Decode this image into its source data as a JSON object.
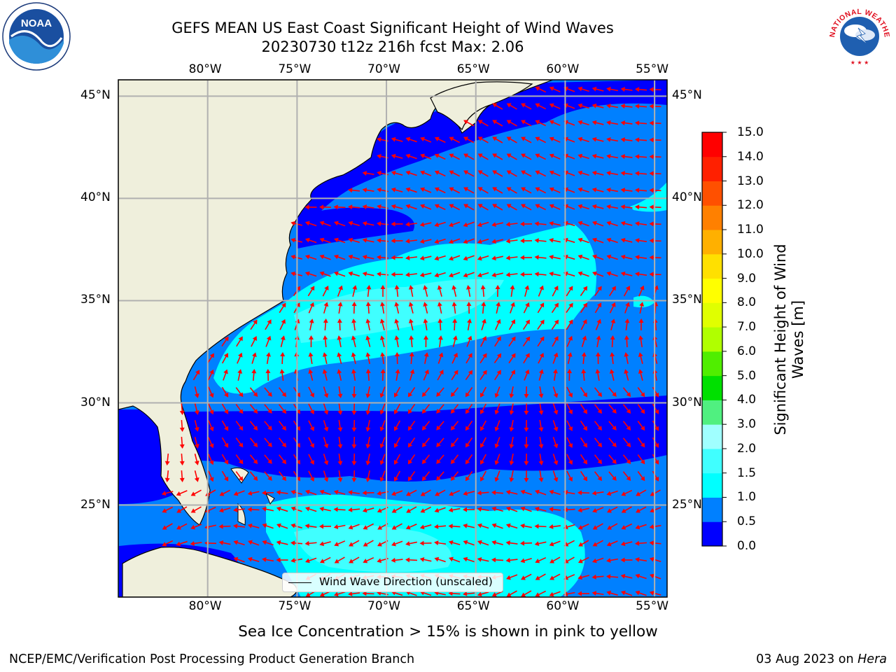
{
  "title": {
    "line1": "GEFS MEAN US East Coast Significant Height of Wind Waves",
    "line2": "20230730 t12z 216h fcst   Max: 2.06"
  },
  "map": {
    "extent": {
      "lon_min": -85,
      "lon_max": -54.3,
      "lat_min": 20.5,
      "lat_max": 45.8
    },
    "lon_ticks": [
      "80°W",
      "75°W",
      "70°W",
      "65°W",
      "60°W",
      "55°W"
    ],
    "lat_ticks": [
      "45°N",
      "40°N",
      "35°N",
      "30°N",
      "25°N"
    ],
    "land_color": "#efefdc",
    "arrow_color": "#ff0000",
    "grid_color": "#b0b0b0",
    "legend": "Wind Wave Direction (unscaled)"
  },
  "colorbar": {
    "label": "Significant Height of Wind Waves [m]",
    "ticks": [
      "0.0",
      "0.5",
      "1.0",
      "1.5",
      "2.0",
      "3.0",
      "4.0",
      "5.0",
      "6.0",
      "7.0",
      "8.0",
      "9.0",
      "10.0",
      "11.0",
      "12.0",
      "13.0",
      "14.0",
      "15.0"
    ],
    "colors": [
      "#0000ff",
      "#0080ff",
      "#00ffff",
      "#40ffff",
      "#a0ffff",
      "#50f080",
      "#00e000",
      "#50ee00",
      "#b0ff00",
      "#e0ff00",
      "#ffff00",
      "#ffe000",
      "#ffb000",
      "#ff8000",
      "#ff5000",
      "#ff2000",
      "#ff0000"
    ]
  },
  "subtitle": "Sea Ice Concentration > 15% is shown in pink to yellow",
  "footer": {
    "left": "NCEP/EMC/Verification Post Processing Product Generation Branch",
    "date": "03 Aug 2023 on ",
    "machine": "Hera"
  },
  "logos": {
    "noaa": "NOAA",
    "nws_ring": "NATIONAL WEATHER SERVICE"
  }
}
